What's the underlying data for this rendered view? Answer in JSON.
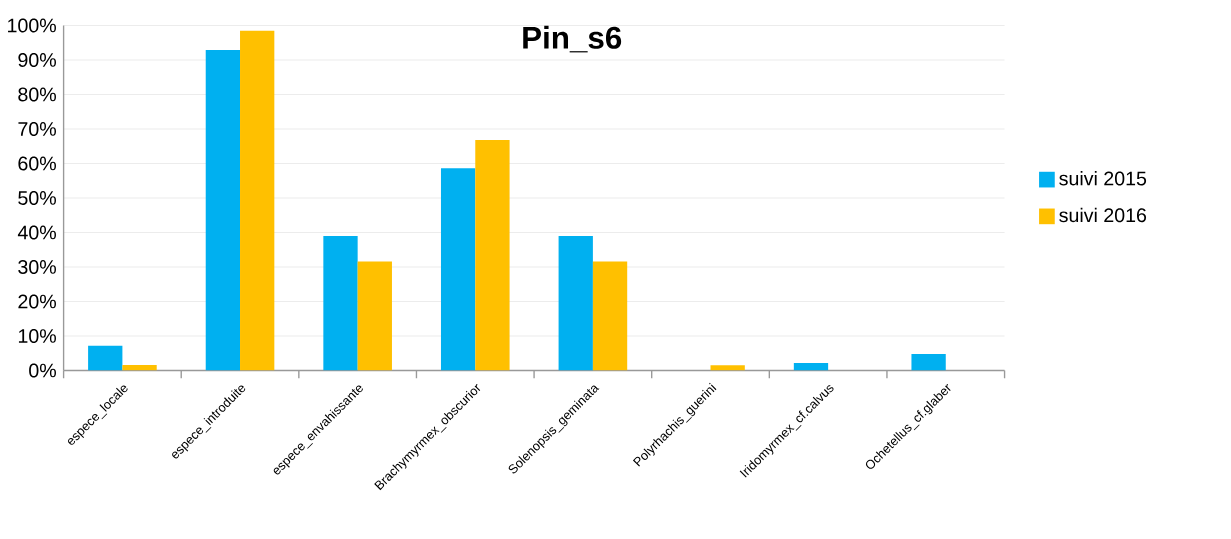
{
  "chart_data": {
    "type": "bar",
    "title": "Pin_s6",
    "categories": [
      "espece_locale",
      "espece_introduite",
      "espece_envahissante",
      "Brachymyrmex_obscurior",
      "Solenopsis_geminata",
      "Polyrhachis_guerini",
      "Iridomyrmex_cf.calvus",
      "Ochetellus_cf.glaber"
    ],
    "series": [
      {
        "name": "suivi 2015",
        "color": "#00b0f0",
        "values": [
          7.2,
          92.9,
          39.0,
          58.6,
          39.0,
          0,
          2.2,
          4.8
        ]
      },
      {
        "name": "suivi 2016",
        "color": "#ffc000",
        "values": [
          1.6,
          98.5,
          31.6,
          66.8,
          31.6,
          1.5,
          0,
          0
        ]
      }
    ],
    "ylim": [
      0,
      100
    ],
    "yticks": [
      {
        "value": 0,
        "label": "0%"
      },
      {
        "value": 10,
        "label": "10%"
      },
      {
        "value": 20,
        "label": "20%"
      },
      {
        "value": 30,
        "label": "30%"
      },
      {
        "value": 40,
        "label": "40%"
      },
      {
        "value": 50,
        "label": "50%"
      },
      {
        "value": 60,
        "label": "60%"
      },
      {
        "value": 70,
        "label": "70%"
      },
      {
        "value": 80,
        "label": "80%"
      },
      {
        "value": 90,
        "label": "90%"
      },
      {
        "value": 100,
        "label": "100%"
      }
    ],
    "grid": "y",
    "legend": "right"
  }
}
